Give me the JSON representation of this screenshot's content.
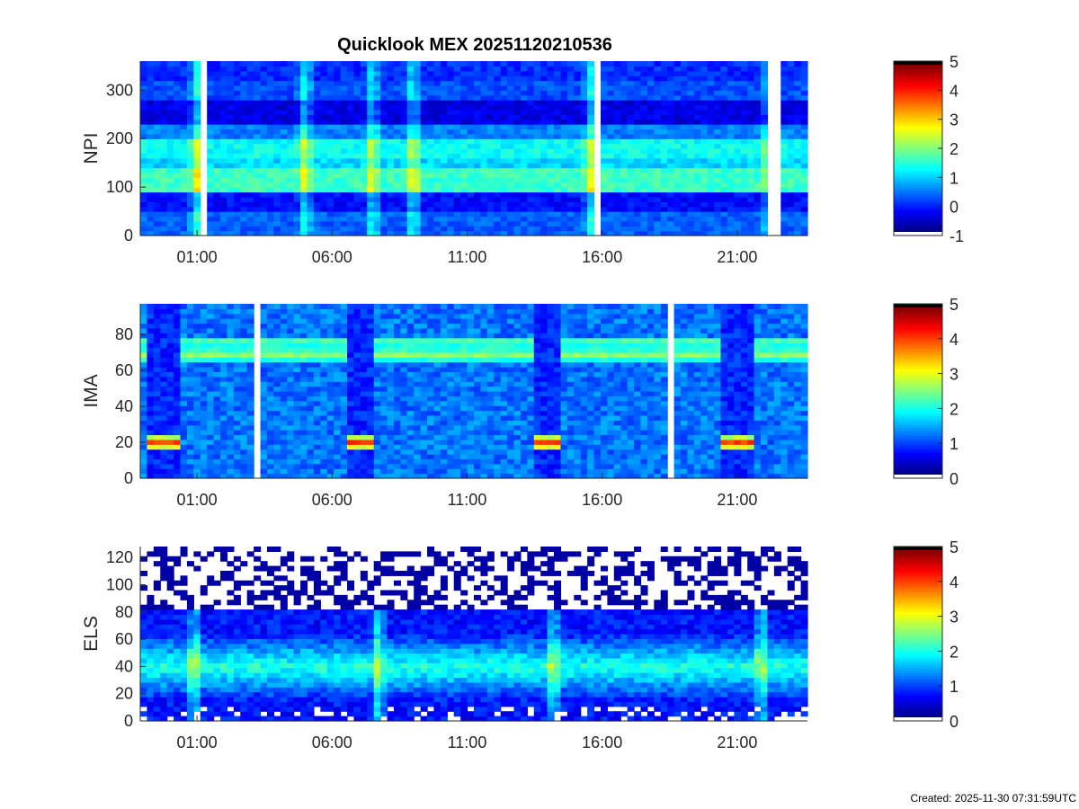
{
  "title": "Quicklook MEX 20251120210536",
  "footer": "Created: 2025-11-30 07:31:59UTC",
  "chart_data": [
    {
      "type": "heatmap",
      "instrument": "NPI",
      "ylabel": "NPI",
      "x_ticks": [
        "01:00",
        "06:00",
        "11:00",
        "16:00",
        "21:00"
      ],
      "y_ticks": [
        "0",
        "100",
        "200",
        "300"
      ],
      "ylim": [
        0,
        360
      ],
      "xlim_hours": [
        22.9,
        47.6
      ],
      "colorbar": {
        "ticks": [
          "-1",
          "0",
          "1",
          "2",
          "3",
          "4",
          "5"
        ],
        "range": [
          -1,
          5
        ],
        "colormap": "jet"
      },
      "data_gaps_hours": [
        [
          25.0,
          25.4
        ],
        [
          39.8,
          39.9
        ],
        [
          46.1,
          46.6
        ]
      ],
      "bands": [
        {
          "from": 0,
          "to": 50,
          "level": 0.3
        },
        {
          "from": 50,
          "to": 95,
          "level": -0.2
        },
        {
          "from": 95,
          "to": 140,
          "level": 1.6
        },
        {
          "from": 140,
          "to": 160,
          "level": 1.0
        },
        {
          "from": 160,
          "to": 200,
          "level": 1.3
        },
        {
          "from": 200,
          "to": 235,
          "level": 0.5
        },
        {
          "from": 235,
          "to": 285,
          "level": -0.4
        },
        {
          "from": 285,
          "to": 320,
          "level": 0.2
        },
        {
          "from": 320,
          "to": 360,
          "level": 0.0
        }
      ]
    },
    {
      "type": "heatmap",
      "instrument": "IMA",
      "ylabel": "IMA",
      "x_ticks": [
        "01:00",
        "06:00",
        "11:00",
        "16:00",
        "21:00"
      ],
      "y_ticks": [
        "0",
        "20",
        "40",
        "60",
        "80"
      ],
      "ylim": [
        0,
        97
      ],
      "xlim_hours": [
        22.9,
        47.6
      ],
      "colorbar": {
        "ticks": [
          "0",
          "1",
          "2",
          "3",
          "4",
          "5"
        ],
        "range": [
          0,
          5
        ],
        "colormap": "jet"
      },
      "data_gaps_hours": [
        [
          27.2,
          27.35
        ],
        [
          42.4,
          42.55
        ]
      ],
      "ion_bands": [
        {
          "center": 76,
          "level": 2.4
        },
        {
          "center": 69,
          "level": 2.6
        }
      ],
      "pericenter_hours": [
        23.8,
        31.0,
        38.0,
        45.0
      ],
      "low_energy_peak": {
        "center": 20,
        "level": 4.2
      }
    },
    {
      "type": "heatmap",
      "instrument": "ELS",
      "ylabel": "ELS",
      "x_ticks": [
        "01:00",
        "06:00",
        "11:00",
        "16:00",
        "21:00"
      ],
      "y_ticks": [
        "0",
        "20",
        "40",
        "60",
        "80",
        "100",
        "120"
      ],
      "ylim": [
        0,
        128
      ],
      "xlim_hours": [
        22.9,
        47.6
      ],
      "colorbar": {
        "ticks": [
          "0",
          "1",
          "2",
          "3",
          "4",
          "5"
        ],
        "range": [
          -0.6,
          5
        ],
        "colormap": "jet"
      },
      "main_band": {
        "center": 40,
        "level": 1.7
      },
      "spike_hours": [
        24.9,
        31.7,
        38.2,
        45.9
      ],
      "noise_above": 80
    }
  ]
}
